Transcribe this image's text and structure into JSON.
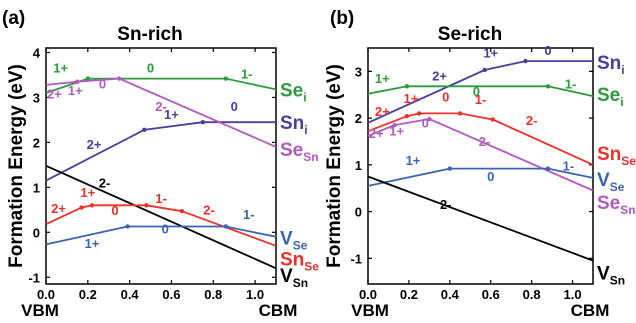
{
  "chart_data": [
    {
      "type": "line",
      "panel_label": "(a)",
      "title": "Sn-rich",
      "ylabel": "Formation Energy (eV)",
      "xlim": [
        0,
        1.1
      ],
      "ylim": [
        -1.15,
        4.1
      ],
      "xticks": [
        "0.0",
        "0.2",
        "0.4",
        "0.6",
        "0.8",
        "1.0"
      ],
      "yticks": [
        "-1",
        "0",
        "1",
        "2",
        "3",
        "4"
      ],
      "x_end_labels": {
        "left": "VBM",
        "right": "CBM"
      },
      "series": [
        {
          "color": "#2e9a3e",
          "label": {
            "main": "Se",
            "sub": "i",
            "y": 3.18
          },
          "points": [
            [
              0,
              3.1
            ],
            [
              0.2,
              3.42
            ],
            [
              0.86,
              3.42
            ],
            [
              1.1,
              3.18
            ]
          ],
          "dots": [
            [
              0.2,
              3.42
            ],
            [
              0.86,
              3.42
            ]
          ],
          "charges": [
            {
              "text": "1+",
              "x": 0.07,
              "y": 3.55
            },
            {
              "text": "0",
              "x": 0.5,
              "y": 3.55
            },
            {
              "text": "1-",
              "x": 0.96,
              "y": 3.42
            }
          ]
        },
        {
          "color": "#4b3d9e",
          "label": {
            "main": "Sn",
            "sub": "i",
            "y": 2.45
          },
          "points": [
            [
              0,
              1.15
            ],
            [
              0.47,
              2.28
            ],
            [
              0.75,
              2.45
            ],
            [
              1.1,
              2.45
            ]
          ],
          "dots": [
            [
              0.47,
              2.28
            ],
            [
              0.75,
              2.45
            ]
          ],
          "charges": [
            {
              "text": "2+",
              "x": 0.23,
              "y": 1.85
            },
            {
              "text": "1+",
              "x": 0.6,
              "y": 2.52
            },
            {
              "text": "0",
              "x": 0.9,
              "y": 2.7
            }
          ]
        },
        {
          "color": "#b25bbf",
          "label": {
            "main": "Se",
            "sub": "Sn",
            "y": 1.85
          },
          "points": [
            [
              0,
              3.28
            ],
            [
              0.15,
              3.35
            ],
            [
              0.35,
              3.42
            ],
            [
              1.1,
              1.9
            ]
          ],
          "dots": [
            [
              0.15,
              3.35
            ],
            [
              0.35,
              3.42
            ]
          ],
          "charges": [
            {
              "text": "2+",
              "x": 0.04,
              "y": 2.98
            },
            {
              "text": "1+",
              "x": 0.14,
              "y": 3.05
            },
            {
              "text": "0",
              "x": 0.27,
              "y": 3.2
            },
            {
              "text": "2-",
              "x": 0.55,
              "y": 2.7
            }
          ]
        },
        {
          "color": "#000000",
          "label": {
            "main": "V",
            "sub": "Sn",
            "y": -0.95
          },
          "points": [
            [
              0,
              1.48
            ],
            [
              1.1,
              -0.8
            ]
          ],
          "dots": [],
          "charges": [
            {
              "text": "2-",
              "x": 0.28,
              "y": 1.0
            }
          ]
        },
        {
          "color": "#e8322b",
          "label": {
            "main": "Sn",
            "sub": "Se",
            "y": -0.58
          },
          "points": [
            [
              0,
              0.18
            ],
            [
              0.17,
              0.55
            ],
            [
              0.22,
              0.6
            ],
            [
              0.48,
              0.6
            ],
            [
              0.65,
              0.47
            ],
            [
              1.1,
              -0.3
            ]
          ],
          "dots": [
            [
              0.17,
              0.55
            ],
            [
              0.22,
              0.6
            ],
            [
              0.48,
              0.6
            ],
            [
              0.65,
              0.47
            ]
          ],
          "charges": [
            {
              "text": "2+",
              "x": 0.06,
              "y": 0.43
            },
            {
              "text": "1+",
              "x": 0.2,
              "y": 0.78
            },
            {
              "text": "0",
              "x": 0.33,
              "y": 0.38
            },
            {
              "text": "1-",
              "x": 0.55,
              "y": 0.65
            },
            {
              "text": "2-",
              "x": 0.78,
              "y": 0.4
            }
          ]
        },
        {
          "color": "#3b63b3",
          "label": {
            "main": "V",
            "sub": "Se",
            "y": -0.12
          },
          "points": [
            [
              0,
              -0.27
            ],
            [
              0.39,
              0.13
            ],
            [
              0.86,
              0.13
            ],
            [
              1.1,
              -0.1
            ]
          ],
          "dots": [
            [
              0.39,
              0.13
            ],
            [
              0.86,
              0.13
            ]
          ],
          "charges": [
            {
              "text": "1+",
              "x": 0.22,
              "y": -0.35
            },
            {
              "text": "0",
              "x": 0.57,
              "y": -0.03
            },
            {
              "text": "1-",
              "x": 0.97,
              "y": 0.3
            }
          ]
        }
      ]
    },
    {
      "type": "line",
      "panel_label": "(b)",
      "title": "Se-rich",
      "ylabel": "Formation Energy (eV)",
      "xlim": [
        0,
        1.1
      ],
      "ylim": [
        -1.55,
        3.5
      ],
      "xticks": [
        "0.0",
        "0.2",
        "0.4",
        "0.6",
        "0.8",
        "1.0"
      ],
      "yticks": [
        "-1",
        "0",
        "1",
        "2",
        "3"
      ],
      "x_end_labels": {
        "left": "VBM",
        "right": "CBM"
      },
      "series": [
        {
          "color": "#4b3d9e",
          "label": {
            "main": "Sn",
            "sub": "i",
            "y": 3.2
          },
          "points": [
            [
              0,
              1.9
            ],
            [
              0.57,
              3.03
            ],
            [
              0.77,
              3.22
            ],
            [
              1.1,
              3.22
            ]
          ],
          "dots": [
            [
              0.57,
              3.03
            ],
            [
              0.77,
              3.22
            ]
          ],
          "charges": [
            {
              "text": "2+",
              "x": 0.35,
              "y": 2.8
            },
            {
              "text": "1+",
              "x": 0.6,
              "y": 3.3
            },
            {
              "text": "0",
              "x": 0.88,
              "y": 3.35
            }
          ]
        },
        {
          "color": "#2e9a3e",
          "label": {
            "main": "Se",
            "sub": "i",
            "y": 2.52
          },
          "points": [
            [
              0,
              2.52
            ],
            [
              0.19,
              2.68
            ],
            [
              0.88,
              2.68
            ],
            [
              1.1,
              2.47
            ]
          ],
          "dots": [
            [
              0.19,
              2.68
            ],
            [
              0.88,
              2.68
            ]
          ],
          "charges": [
            {
              "text": "1+",
              "x": 0.07,
              "y": 2.75
            },
            {
              "text": "0",
              "x": 0.53,
              "y": 2.47
            },
            {
              "text": "1-",
              "x": 0.99,
              "y": 2.63
            }
          ]
        },
        {
          "color": "#e8322b",
          "label": {
            "main": "Sn",
            "sub": "Se",
            "y": 1.25
          },
          "points": [
            [
              0,
              1.72
            ],
            [
              0.19,
              2.04
            ],
            [
              0.25,
              2.1
            ],
            [
              0.45,
              2.1
            ],
            [
              0.61,
              1.97
            ],
            [
              1.1,
              1.0
            ]
          ],
          "dots": [
            [
              0.19,
              2.04
            ],
            [
              0.25,
              2.1
            ],
            [
              0.45,
              2.1
            ],
            [
              0.61,
              1.97
            ]
          ],
          "charges": [
            {
              "text": "2+",
              "x": 0.07,
              "y": 2.05
            },
            {
              "text": "1+",
              "x": 0.21,
              "y": 2.32
            },
            {
              "text": "0",
              "x": 0.38,
              "y": 2.35
            },
            {
              "text": "1-",
              "x": 0.55,
              "y": 2.3
            },
            {
              "text": "2-",
              "x": 0.8,
              "y": 1.85
            }
          ]
        },
        {
          "color": "#b25bbf",
          "label": {
            "main": "Se",
            "sub": "Sn",
            "y": 0.2
          },
          "points": [
            [
              0,
              1.62
            ],
            [
              0.13,
              1.85
            ],
            [
              0.3,
              1.98
            ],
            [
              1.1,
              0.45
            ]
          ],
          "dots": [
            [
              0.13,
              1.85
            ],
            [
              0.3,
              1.98
            ]
          ],
          "charges": [
            {
              "text": "2+",
              "x": 0.04,
              "y": 1.57
            },
            {
              "text": "1+",
              "x": 0.14,
              "y": 1.63
            },
            {
              "text": "0",
              "x": 0.28,
              "y": 1.8
            },
            {
              "text": "2-",
              "x": 0.57,
              "y": 1.4
            }
          ]
        },
        {
          "color": "#3b63b3",
          "label": {
            "main": "V",
            "sub": "Se",
            "y": 0.7
          },
          "points": [
            [
              0,
              0.55
            ],
            [
              0.4,
              0.92
            ],
            [
              0.88,
              0.92
            ],
            [
              1.1,
              0.72
            ]
          ],
          "dots": [
            [
              0.4,
              0.92
            ],
            [
              0.88,
              0.92
            ]
          ],
          "charges": [
            {
              "text": "1+",
              "x": 0.22,
              "y": 1.0
            },
            {
              "text": "0",
              "x": 0.6,
              "y": 0.65
            },
            {
              "text": "1-",
              "x": 0.98,
              "y": 0.88
            }
          ]
        },
        {
          "color": "#000000",
          "label": {
            "main": "V",
            "sub": "Sn",
            "y": -1.3
          },
          "points": [
            [
              0,
              0.75
            ],
            [
              1.1,
              -1.05
            ]
          ],
          "dots": [],
          "charges": [
            {
              "text": "2-",
              "x": 0.38,
              "y": 0.05
            }
          ]
        }
      ]
    }
  ]
}
